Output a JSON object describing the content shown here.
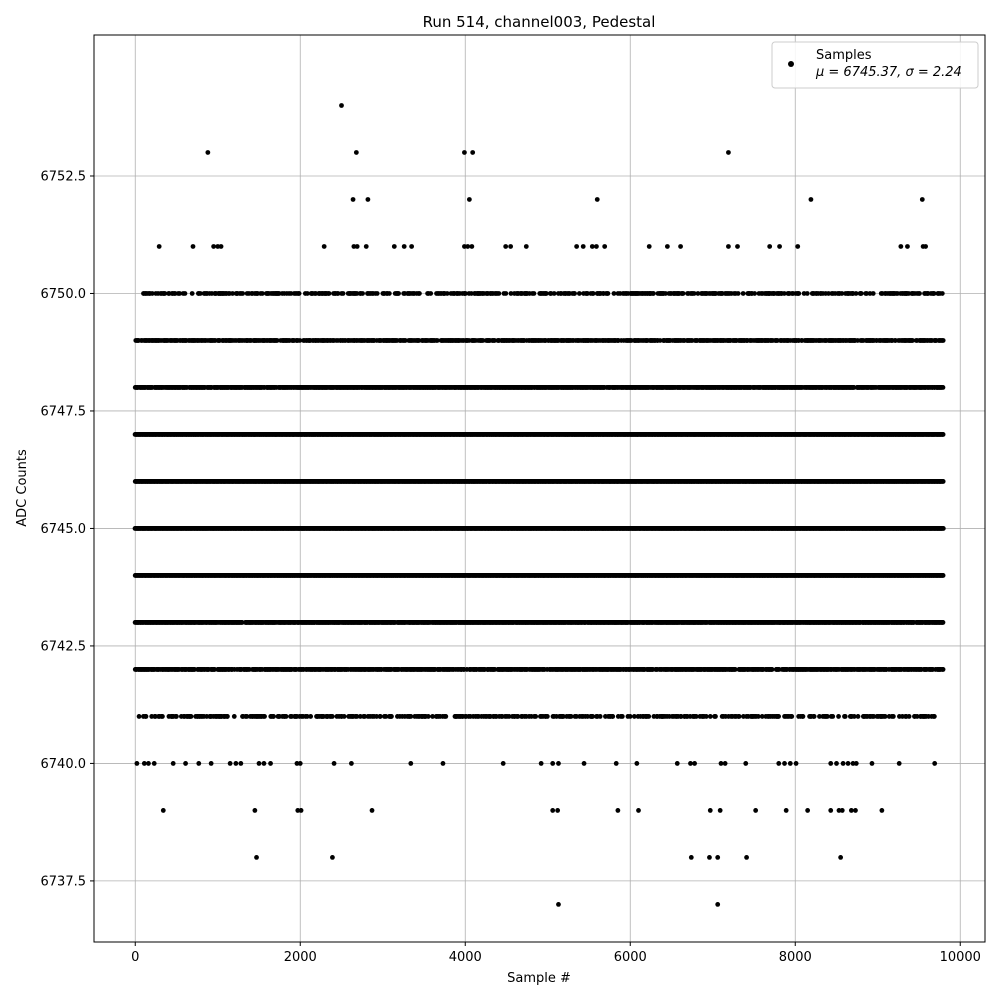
{
  "chart_data": {
    "type": "scatter",
    "title": "Run 514, channel003, Pedestal",
    "xlabel": "Sample #",
    "ylabel": "ADC Counts",
    "xlim": [
      -500,
      10300
    ],
    "ylim": [
      6736.2,
      6755.5
    ],
    "x_ticks": [
      0,
      2000,
      4000,
      6000,
      8000,
      10000
    ],
    "x_tick_labels": [
      "0",
      "2000",
      "4000",
      "6000",
      "8000",
      "10000"
    ],
    "y_ticks": [
      6737.5,
      6740.0,
      6742.5,
      6745.0,
      6747.5,
      6750.0,
      6752.5
    ],
    "y_tick_labels": [
      "6737.5",
      "6740.0",
      "6742.5",
      "6745.0",
      "6747.5",
      "6750.0",
      "6752.5"
    ],
    "grid": true,
    "legend": {
      "placement": "top-right",
      "series_label": "Samples",
      "stats_label": "μ = 6745.37, σ = 2.24"
    },
    "marker_color": "#000000",
    "sample_count": 9800,
    "level_counts_ratio_note": "",
    "series": [
      {
        "name": "Samples",
        "level_bands": [
          {
            "y": 6743,
            "x_start": 0,
            "x_end": 9800,
            "density": 0.95
          },
          {
            "y": 6744,
            "x_start": 0,
            "x_end": 9800,
            "density": 1.0
          },
          {
            "y": 6745,
            "x_start": 0,
            "x_end": 9800,
            "density": 1.0
          },
          {
            "y": 6746,
            "x_start": 0,
            "x_end": 9800,
            "density": 1.0
          },
          {
            "y": 6747,
            "x_start": 0,
            "x_end": 9800,
            "density": 1.0
          },
          {
            "y": 6748,
            "x_start": 0,
            "x_end": 9800,
            "density": 0.9
          },
          {
            "y": 6742,
            "x_start": 0,
            "x_end": 9800,
            "density": 0.75
          },
          {
            "y": 6749,
            "x_start": 0,
            "x_end": 9800,
            "density": 0.7
          },
          {
            "y": 6750,
            "x_start": 80,
            "x_end": 9800,
            "density": 0.45
          },
          {
            "y": 6741,
            "x_start": 30,
            "x_end": 9700,
            "density": 0.35
          }
        ],
        "points": [
          [
            880,
            6753
          ],
          [
            2500,
            6754
          ],
          [
            2680,
            6753
          ],
          [
            3990,
            6753
          ],
          [
            4090,
            6753
          ],
          [
            7190,
            6753
          ],
          [
            2640,
            6752
          ],
          [
            2820,
            6752
          ],
          [
            4050,
            6752
          ],
          [
            5600,
            6752
          ],
          [
            8190,
            6752
          ],
          [
            9540,
            6752
          ],
          [
            290,
            6751
          ],
          [
            700,
            6751
          ],
          [
            950,
            6751
          ],
          [
            1000,
            6751
          ],
          [
            1040,
            6751
          ],
          [
            2290,
            6751
          ],
          [
            2650,
            6751
          ],
          [
            2690,
            6751
          ],
          [
            2800,
            6751
          ],
          [
            3140,
            6751
          ],
          [
            3260,
            6751
          ],
          [
            3350,
            6751
          ],
          [
            3990,
            6751
          ],
          [
            4030,
            6751
          ],
          [
            4080,
            6751
          ],
          [
            4490,
            6751
          ],
          [
            4550,
            6751
          ],
          [
            4740,
            6751
          ],
          [
            5350,
            6751
          ],
          [
            5430,
            6751
          ],
          [
            5540,
            6751
          ],
          [
            5590,
            6751
          ],
          [
            5690,
            6751
          ],
          [
            6230,
            6751
          ],
          [
            6450,
            6751
          ],
          [
            6610,
            6751
          ],
          [
            7190,
            6751
          ],
          [
            7300,
            6751
          ],
          [
            7690,
            6751
          ],
          [
            7810,
            6751
          ],
          [
            8030,
            6751
          ],
          [
            9280,
            6751
          ],
          [
            9360,
            6751
          ],
          [
            9550,
            6751
          ],
          [
            9580,
            6751
          ],
          [
            20,
            6740
          ],
          [
            110,
            6740
          ],
          [
            160,
            6740
          ],
          [
            230,
            6740
          ],
          [
            460,
            6740
          ],
          [
            610,
            6740
          ],
          [
            770,
            6740
          ],
          [
            920,
            6740
          ],
          [
            1150,
            6740
          ],
          [
            1220,
            6740
          ],
          [
            1280,
            6740
          ],
          [
            1500,
            6740
          ],
          [
            1560,
            6740
          ],
          [
            1640,
            6740
          ],
          [
            1960,
            6740
          ],
          [
            2000,
            6740
          ],
          [
            2410,
            6740
          ],
          [
            2620,
            6740
          ],
          [
            3340,
            6740
          ],
          [
            3730,
            6740
          ],
          [
            4460,
            6740
          ],
          [
            4920,
            6740
          ],
          [
            5060,
            6740
          ],
          [
            5130,
            6740
          ],
          [
            5440,
            6740
          ],
          [
            5830,
            6740
          ],
          [
            6080,
            6740
          ],
          [
            6570,
            6740
          ],
          [
            6730,
            6740
          ],
          [
            6780,
            6740
          ],
          [
            7100,
            6740
          ],
          [
            7150,
            6740
          ],
          [
            7400,
            6740
          ],
          [
            7800,
            6740
          ],
          [
            7870,
            6740
          ],
          [
            7940,
            6740
          ],
          [
            8010,
            6740
          ],
          [
            8430,
            6740
          ],
          [
            8500,
            6740
          ],
          [
            8580,
            6740
          ],
          [
            8640,
            6740
          ],
          [
            8700,
            6740
          ],
          [
            8740,
            6740
          ],
          [
            8930,
            6740
          ],
          [
            9260,
            6740
          ],
          [
            9690,
            6740
          ],
          [
            340,
            6739
          ],
          [
            1450,
            6739
          ],
          [
            1970,
            6739
          ],
          [
            2010,
            6739
          ],
          [
            2870,
            6739
          ],
          [
            5060,
            6739
          ],
          [
            5120,
            6739
          ],
          [
            5850,
            6739
          ],
          [
            6100,
            6739
          ],
          [
            6970,
            6739
          ],
          [
            7090,
            6739
          ],
          [
            7520,
            6739
          ],
          [
            7890,
            6739
          ],
          [
            8150,
            6739
          ],
          [
            8430,
            6739
          ],
          [
            8530,
            6739
          ],
          [
            8570,
            6739
          ],
          [
            8680,
            6739
          ],
          [
            8730,
            6739
          ],
          [
            9050,
            6739
          ],
          [
            1470,
            6738
          ],
          [
            2390,
            6738
          ],
          [
            6740,
            6738
          ],
          [
            6960,
            6738
          ],
          [
            7060,
            6738
          ],
          [
            7410,
            6738
          ],
          [
            8550,
            6738
          ],
          [
            5130,
            6737
          ],
          [
            7060,
            6737
          ]
        ]
      }
    ]
  }
}
